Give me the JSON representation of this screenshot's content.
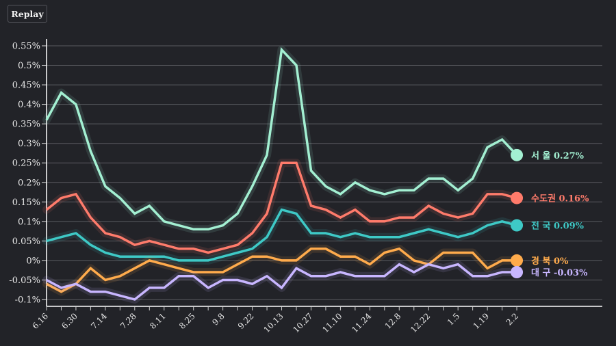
{
  "controls": {
    "replay_label": "Replay"
  },
  "chart_data": {
    "type": "line",
    "title": "",
    "xlabel": "",
    "ylabel": "",
    "ylim": [
      -0.1,
      0.55
    ],
    "y_unit": "%",
    "grid": true,
    "y_ticks": [
      0.55,
      0.5,
      0.45,
      0.4,
      0.35,
      0.3,
      0.25,
      0.2,
      0.15,
      0.1,
      0.05,
      0,
      -0.05,
      -0.1
    ],
    "y_tick_labels": [
      "0.55%",
      "0.5%",
      "0.45%",
      "0.4%",
      "0.35%",
      "0.3%",
      "0.25%",
      "0.2%",
      "0.15%",
      "0.1%",
      "0.05%",
      "0%",
      "-0.05%",
      "-0.1%"
    ],
    "x": [
      "6.16",
      "6.23",
      "6.30",
      "7.7",
      "7.14",
      "7.21",
      "7.28",
      "8.4",
      "8.11",
      "8.18",
      "8.25",
      "9.1",
      "9.8",
      "9.15",
      "9.22",
      "10.6",
      "10.13",
      "10.20",
      "10.27",
      "11.3",
      "11.10",
      "11.17",
      "11.24",
      "12.1",
      "12.8",
      "12.15",
      "12.22",
      "12.29",
      "1.5",
      "1.12",
      "1.19",
      "1.26",
      "2.2"
    ],
    "x_tick_labels": [
      "6.16",
      "6.30",
      "7.14",
      "7.28",
      "8.11",
      "8.25",
      "9.8",
      "9.22",
      "10.13",
      "10.27",
      "11.10",
      "11.24",
      "12.8",
      "12.22",
      "1.5",
      "1.19",
      "2.2"
    ],
    "series": [
      {
        "name": "서 울",
        "end_label": "0.27%",
        "color": "#a3f0d2",
        "values": [
          0.36,
          0.43,
          0.4,
          0.28,
          0.19,
          0.16,
          0.12,
          0.14,
          0.1,
          0.09,
          0.08,
          0.08,
          0.09,
          0.12,
          0.19,
          0.27,
          0.54,
          0.5,
          0.23,
          0.19,
          0.17,
          0.2,
          0.18,
          0.17,
          0.18,
          0.18,
          0.21,
          0.21,
          0.18,
          0.21,
          0.29,
          0.31,
          0.27
        ]
      },
      {
        "name": "수도권",
        "end_label": "0.16%",
        "color": "#ff7b6b",
        "values": [
          0.13,
          0.16,
          0.17,
          0.11,
          0.07,
          0.06,
          0.04,
          0.05,
          0.04,
          0.03,
          0.03,
          0.02,
          0.03,
          0.04,
          0.07,
          0.12,
          0.25,
          0.25,
          0.14,
          0.13,
          0.11,
          0.13,
          0.1,
          0.1,
          0.11,
          0.11,
          0.14,
          0.12,
          0.11,
          0.12,
          0.17,
          0.17,
          0.16
        ]
      },
      {
        "name": "전 국",
        "end_label": "0.09%",
        "color": "#3ec9c6",
        "values": [
          0.05,
          0.06,
          0.07,
          0.04,
          0.02,
          0.01,
          0.01,
          0.01,
          0.01,
          0.0,
          0.0,
          0.0,
          0.01,
          0.02,
          0.03,
          0.06,
          0.13,
          0.12,
          0.07,
          0.07,
          0.06,
          0.07,
          0.06,
          0.06,
          0.06,
          0.07,
          0.08,
          0.07,
          0.06,
          0.07,
          0.09,
          0.1,
          0.09
        ]
      },
      {
        "name": "경 북",
        "end_label": "0%",
        "color": "#ffab4c",
        "values": [
          -0.06,
          -0.08,
          -0.06,
          -0.02,
          -0.05,
          -0.04,
          -0.02,
          0.0,
          -0.01,
          -0.02,
          -0.03,
          -0.03,
          -0.03,
          -0.01,
          0.01,
          0.01,
          0.0,
          0.0,
          0.03,
          0.03,
          0.01,
          0.01,
          -0.01,
          0.02,
          0.03,
          0.0,
          -0.01,
          0.02,
          0.02,
          0.02,
          -0.02,
          0.0,
          0.0
        ]
      },
      {
        "name": "대 구",
        "end_label": "-0.03%",
        "color": "#c8b6ff",
        "values": [
          -0.05,
          -0.07,
          -0.06,
          -0.08,
          -0.08,
          -0.09,
          -0.1,
          -0.07,
          -0.07,
          -0.04,
          -0.04,
          -0.07,
          -0.05,
          -0.05,
          -0.06,
          -0.04,
          -0.07,
          -0.02,
          -0.04,
          -0.04,
          -0.03,
          -0.04,
          -0.04,
          -0.04,
          -0.01,
          -0.03,
          -0.01,
          -0.02,
          -0.01,
          -0.04,
          -0.04,
          -0.03,
          -0.03
        ]
      }
    ]
  }
}
